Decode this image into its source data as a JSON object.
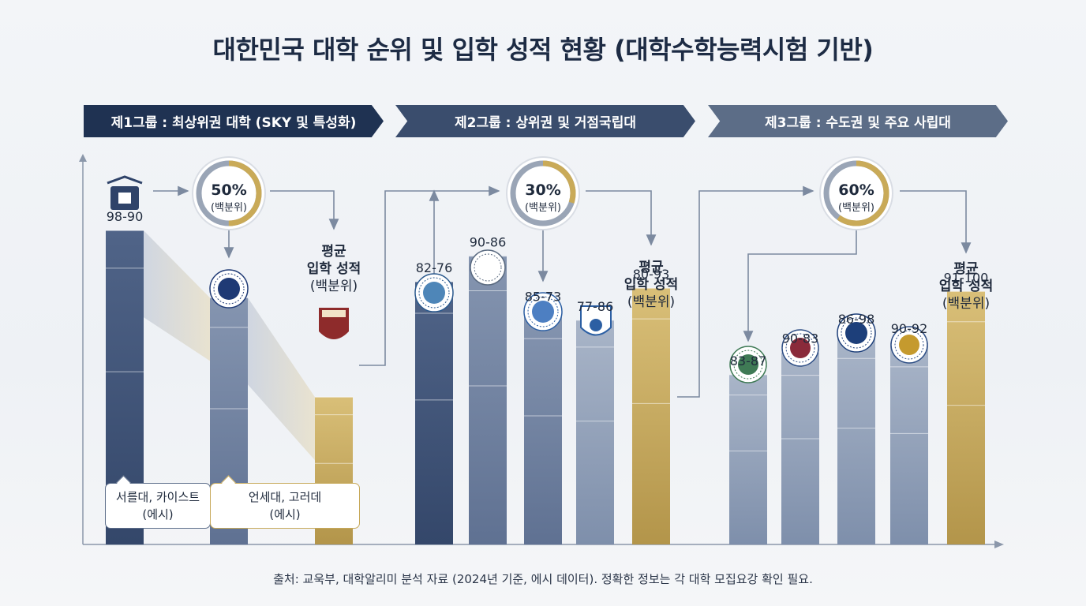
{
  "title": "대한민국 대학 순위 및 입학 성적 현황 (대학수학능력시험 기반)",
  "groups": [
    {
      "label": "제1그룹 : 최상위권 대학 (SKY 및 특성화)",
      "percent": "50%",
      "percent_sub": "(백분위)",
      "percent_value": 50
    },
    {
      "label": "제2그룹 : 상위권 및 거점국립대",
      "percent": "30%",
      "percent_sub": "(백분위)",
      "percent_value": 30
    },
    {
      "label": "제3그룹 : 수도권 및 주요 사립대",
      "percent": "60%",
      "percent_sub": "(백분위)",
      "percent_value": 60
    }
  ],
  "avg_label": [
    "평균",
    "입학 성적",
    "(백분위)"
  ],
  "callouts": [
    {
      "line1": "서를대, 카이스트",
      "line2": "(에시)"
    },
    {
      "line1": "언세대, 고러데",
      "line2": "(에시)"
    }
  ],
  "source": "출처: 교욱부, 대학알리미 분석 자료 (2024년 기준, 에시 데이터). 정확한 정보는 각 대학 모집요강 확인 필요.",
  "colors": {
    "navy": "#3c4f6e",
    "slate": "#6f809b",
    "light": "#9aa8bd",
    "gold": "#c4a75c",
    "arrow": "#7c8aa0"
  },
  "chart_data": {
    "type": "bar",
    "title": "대한민국 대학 순위 및 입학 성적 현황 (대학수학능력시험 기반)",
    "bars": [
      {
        "group": 1,
        "label": "98-90",
        "value": 98,
        "kind": "university",
        "color": "navy",
        "logo": "crest-icon"
      },
      {
        "group": 1,
        "label": "",
        "value": 77,
        "kind": "university",
        "color": "slate",
        "logo": "seal-icon"
      },
      {
        "group": 1,
        "label": "",
        "value": 46,
        "kind": "average",
        "color": "gold",
        "logo": "tiger-shield-icon"
      },
      {
        "group": 2,
        "label": "82-76",
        "value": 82,
        "kind": "university",
        "color": "navy",
        "logo": "seal-icon"
      },
      {
        "group": 2,
        "label": "90-86",
        "value": 90,
        "kind": "university",
        "color": "slate",
        "logo": "seal-icon"
      },
      {
        "group": 2,
        "label": "85-73",
        "value": 73,
        "kind": "university",
        "color": "slate",
        "logo": "flower-seal-icon"
      },
      {
        "group": 2,
        "label": "77-86",
        "value": 70,
        "kind": "university",
        "color": "light",
        "logo": "shield-icon"
      },
      {
        "group": 2,
        "label": "80-93",
        "value": 80,
        "kind": "average",
        "color": "gold",
        "logo": ""
      },
      {
        "group": 3,
        "label": "83-87",
        "value": 53,
        "kind": "university",
        "color": "light",
        "logo": "seal-icon"
      },
      {
        "group": 3,
        "label": "90-83",
        "value": 60,
        "kind": "university",
        "color": "light",
        "logo": "seal-icon"
      },
      {
        "group": 3,
        "label": "86-98",
        "value": 66,
        "kind": "university",
        "color": "light",
        "logo": "pillar-seal-icon"
      },
      {
        "group": 3,
        "label": "90-92",
        "value": 63,
        "kind": "university",
        "color": "light",
        "logo": "seal-icon"
      },
      {
        "group": 3,
        "label": "91-100",
        "value": 79,
        "kind": "average",
        "color": "gold",
        "logo": ""
      }
    ],
    "ylim": [
      0,
      100
    ],
    "xlabel": "",
    "ylabel": ""
  }
}
